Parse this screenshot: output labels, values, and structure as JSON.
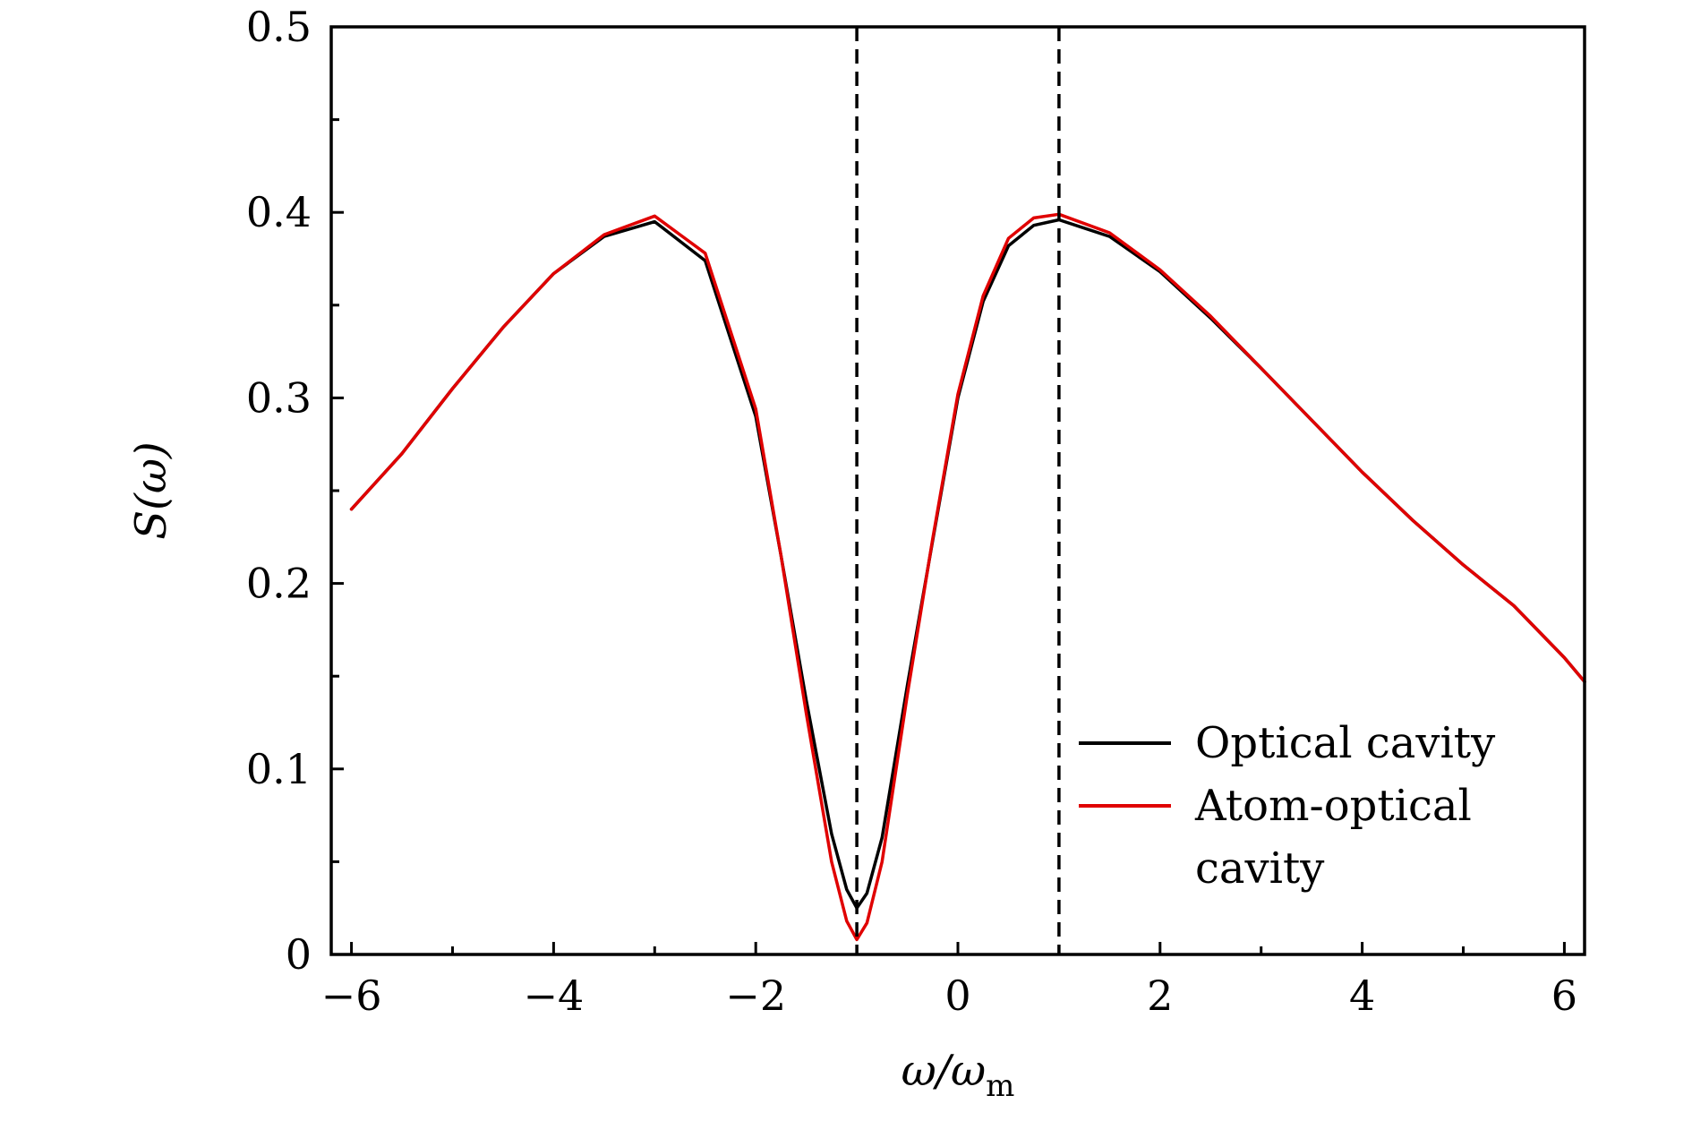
{
  "chart_data": {
    "type": "line",
    "title": "",
    "xlabel": "ω/ωm",
    "xlabel_main": "ω/ω",
    "xlabel_sub": "m",
    "ylabel": "S(ω)",
    "ylabel_main": "S(ω)",
    "xlim": [
      -6.2,
      6.2
    ],
    "ylim": [
      0,
      0.5
    ],
    "x_ticks": [
      -6,
      -4,
      -2,
      0,
      2,
      4,
      6
    ],
    "x_tick_labels": [
      "−6",
      "−4",
      "−2",
      "0",
      "2",
      "4",
      "6"
    ],
    "x_minor_ticks": [
      -5,
      -3,
      -1,
      1,
      3,
      5
    ],
    "y_ticks": [
      0,
      0.1,
      0.2,
      0.3,
      0.4,
      0.5
    ],
    "y_tick_labels": [
      "0",
      "0.1",
      "0.2",
      "0.3",
      "0.4",
      "0.5"
    ],
    "y_minor_ticks": [
      0.05,
      0.15,
      0.25,
      0.35,
      0.45
    ],
    "grid": false,
    "legend_position": "bottom-right",
    "vlines": [
      -1,
      1
    ],
    "x": [
      -6.0,
      -5.5,
      -5.0,
      -4.5,
      -4.0,
      -3.5,
      -3.0,
      -2.5,
      -2.0,
      -1.75,
      -1.5,
      -1.25,
      -1.1,
      -1.0,
      -0.9,
      -0.75,
      -0.5,
      -0.25,
      0.0,
      0.25,
      0.5,
      0.75,
      1.0,
      1.5,
      2.0,
      2.5,
      3.0,
      3.5,
      4.0,
      4.5,
      5.0,
      5.5,
      6.0,
      6.2
    ],
    "series": [
      {
        "name": "Optical cavity",
        "color": "#000000",
        "values": [
          0.24,
          0.27,
          0.305,
          0.338,
          0.367,
          0.387,
          0.395,
          0.374,
          0.29,
          0.215,
          0.137,
          0.065,
          0.035,
          0.025,
          0.033,
          0.063,
          0.145,
          0.223,
          0.3,
          0.352,
          0.382,
          0.393,
          0.396,
          0.387,
          0.368,
          0.343,
          0.316,
          0.288,
          0.26,
          0.234,
          0.21,
          0.188,
          0.16,
          0.147
        ]
      },
      {
        "name": "Atom-optical cavity",
        "color": "#e00000",
        "values": [
          0.24,
          0.27,
          0.305,
          0.338,
          0.367,
          0.388,
          0.398,
          0.378,
          0.294,
          0.215,
          0.13,
          0.05,
          0.018,
          0.008,
          0.017,
          0.05,
          0.14,
          0.224,
          0.302,
          0.355,
          0.386,
          0.397,
          0.399,
          0.389,
          0.369,
          0.344,
          0.316,
          0.288,
          0.26,
          0.234,
          0.21,
          0.188,
          0.16,
          0.147
        ]
      }
    ]
  }
}
